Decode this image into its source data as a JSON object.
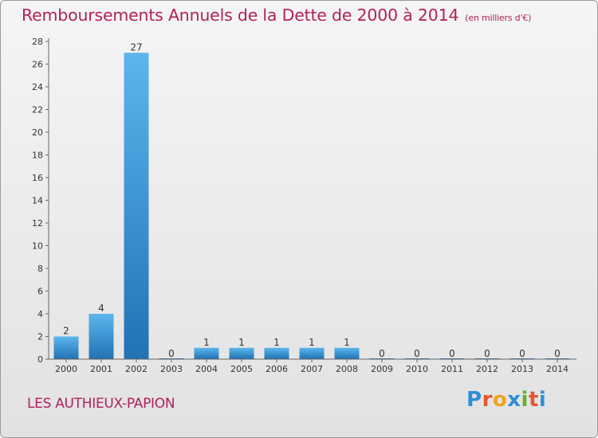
{
  "title": "Remboursements Annuels de la Dette de 2000 à 2014",
  "title_unit": "(en milliers d'€)",
  "commune": "LES AUTHIEUX-PAPION",
  "logo": {
    "letters": [
      "P",
      "r",
      "o",
      "x",
      "i",
      "t",
      "i"
    ],
    "colors": [
      "#2f8fd6",
      "#e4572e",
      "#f0a21d",
      "#2f8fd6",
      "#63b22b",
      "#e4572e",
      "#2f8fd6"
    ]
  },
  "colors": {
    "bar_top": "#5cb6ec",
    "bar_bottom": "#2172b3",
    "title": "#b0215a",
    "text": "#333333",
    "axis": "#666666"
  },
  "chart_data": {
    "type": "bar",
    "categories": [
      "2000",
      "2001",
      "2002",
      "2003",
      "2004",
      "2005",
      "2006",
      "2007",
      "2008",
      "2009",
      "2010",
      "2011",
      "2012",
      "2013",
      "2014"
    ],
    "values": [
      2,
      4,
      27,
      0,
      1,
      1,
      1,
      1,
      1,
      0,
      0,
      0,
      0,
      0,
      0
    ],
    "data_labels": [
      "2",
      "4",
      "27",
      "0",
      "1",
      "1",
      "1",
      "1",
      "1",
      "0",
      "0",
      "0",
      "0",
      "0",
      "0"
    ],
    "yticks": [
      0,
      2,
      4,
      6,
      8,
      10,
      12,
      14,
      16,
      18,
      20,
      22,
      24,
      26,
      28
    ],
    "ylim": [
      0,
      28
    ],
    "grid": false
  }
}
